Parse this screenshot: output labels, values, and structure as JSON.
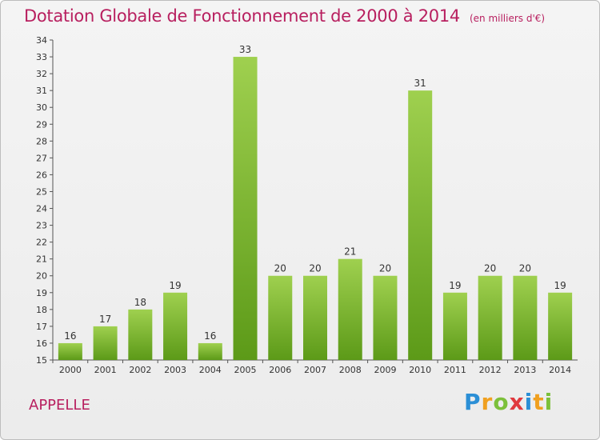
{
  "chart_data": {
    "type": "bar",
    "title": "Dotation Globale de Fonctionnement de 2000 à 2014",
    "unit": "(en milliers d'€)",
    "categories": [
      "2000",
      "2001",
      "2002",
      "2003",
      "2004",
      "2005",
      "2006",
      "2007",
      "2008",
      "2009",
      "2010",
      "2011",
      "2012",
      "2013",
      "2014"
    ],
    "values": [
      16,
      17,
      18,
      19,
      16,
      33,
      20,
      20,
      21,
      20,
      31,
      19,
      20,
      20,
      19
    ],
    "ylim": [
      15,
      34
    ],
    "yticks": [
      15,
      16,
      17,
      18,
      19,
      20,
      21,
      22,
      23,
      24,
      25,
      26,
      27,
      28,
      29,
      30,
      31,
      32,
      33,
      34
    ],
    "grid": false,
    "bar_color_top": "#9fd04f",
    "bar_color_bottom": "#5c9a18"
  },
  "commune": "APPELLE",
  "logo": {
    "text": "Proxiti",
    "letters": [
      {
        "ch": "P",
        "color": "#2b8fd6"
      },
      {
        "ch": "r",
        "color": "#f0a020"
      },
      {
        "ch": "o",
        "color": "#7cc03a"
      },
      {
        "ch": "x",
        "color": "#e0393e"
      },
      {
        "ch": "i",
        "color": "#2b8fd6"
      },
      {
        "ch": "t",
        "color": "#f0a020"
      },
      {
        "ch": "i",
        "color": "#7cc03a"
      }
    ]
  }
}
